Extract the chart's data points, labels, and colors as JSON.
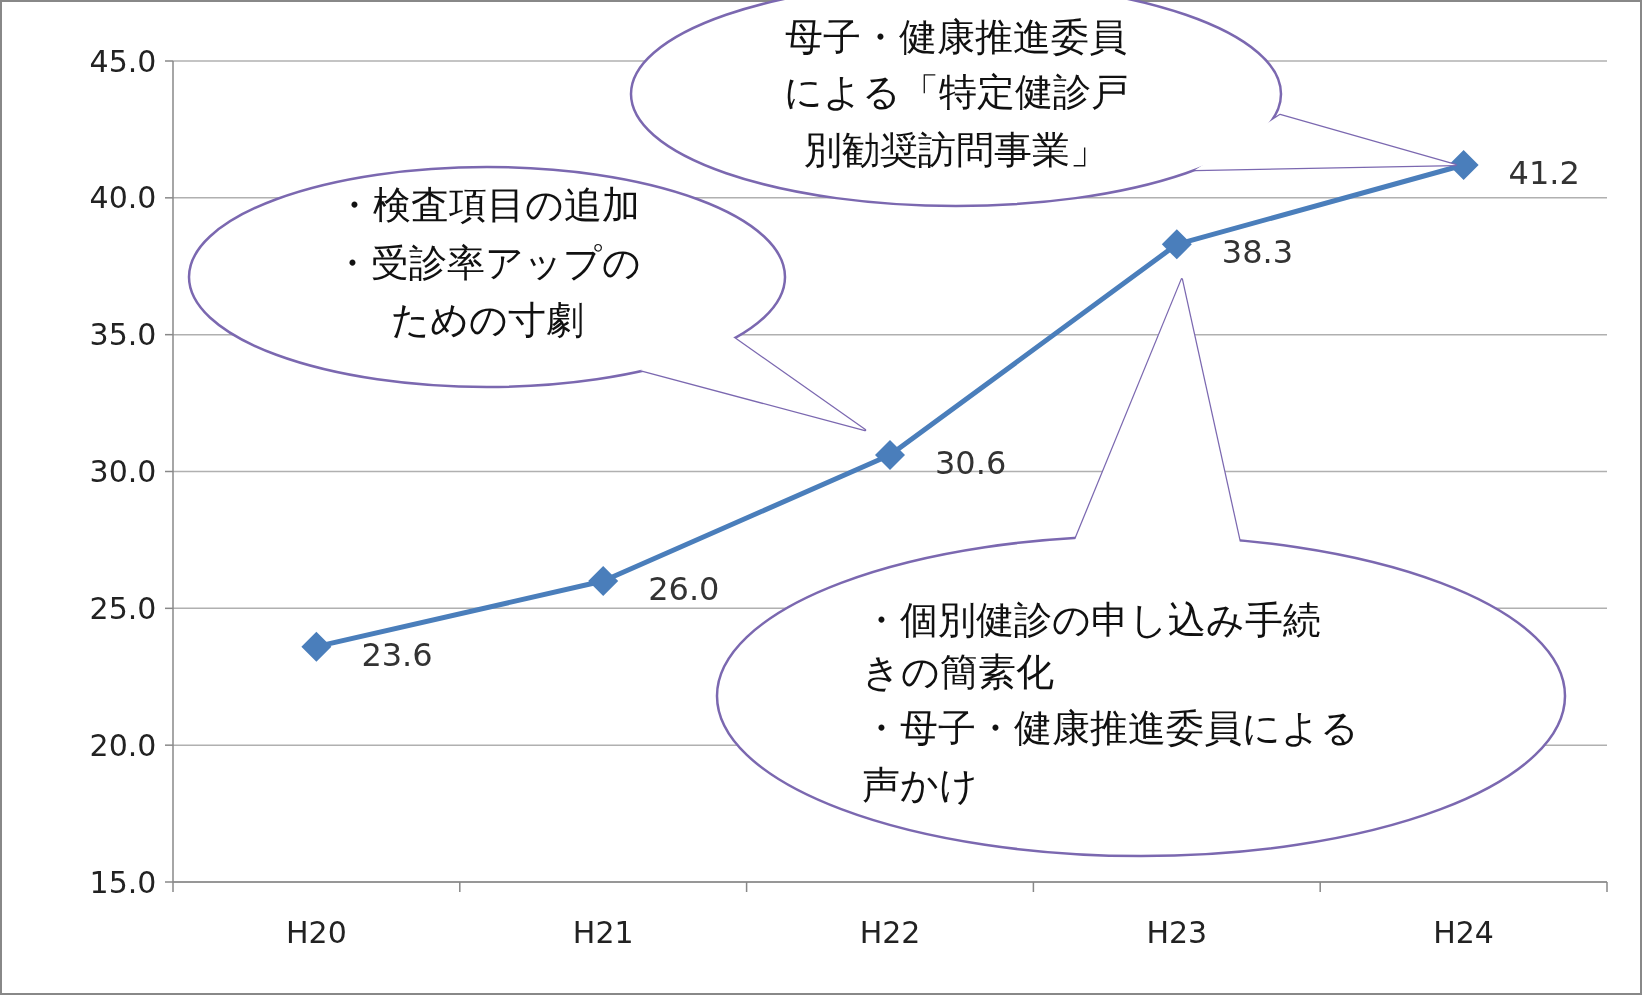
{
  "chart_data": {
    "type": "line",
    "categories": [
      "H20",
      "H21",
      "H22",
      "H23",
      "H24"
    ],
    "series": [
      {
        "color": "#4a7ebb",
        "values": [
          23.6,
          26.0,
          30.6,
          38.3,
          41.2
        ],
        "value_labels": [
          "23.6",
          "26.0",
          "30.6",
          "38.3",
          "41.2"
        ]
      }
    ],
    "ylim": [
      15,
      45
    ],
    "yticks": [
      {
        "value": 15,
        "label": "15.0"
      },
      {
        "value": 20,
        "label": "20.0"
      },
      {
        "value": 25,
        "label": "25.0"
      },
      {
        "value": 30,
        "label": "30.0"
      },
      {
        "value": 35,
        "label": "35.0"
      },
      {
        "value": 40,
        "label": "40.0"
      },
      {
        "value": 45,
        "label": "45.0"
      }
    ],
    "grid": "y",
    "marker": "diamond",
    "line_style": "solid",
    "annotations": [
      "母子・健康推進委員による「特定健診戸別勧奨訪問事業」",
      "・検査項目の追加・受診率アップのための寸劇",
      "・個別健診の申し込み手続きの簡素化・母子・健康推進委員による声かけ"
    ]
  }
}
